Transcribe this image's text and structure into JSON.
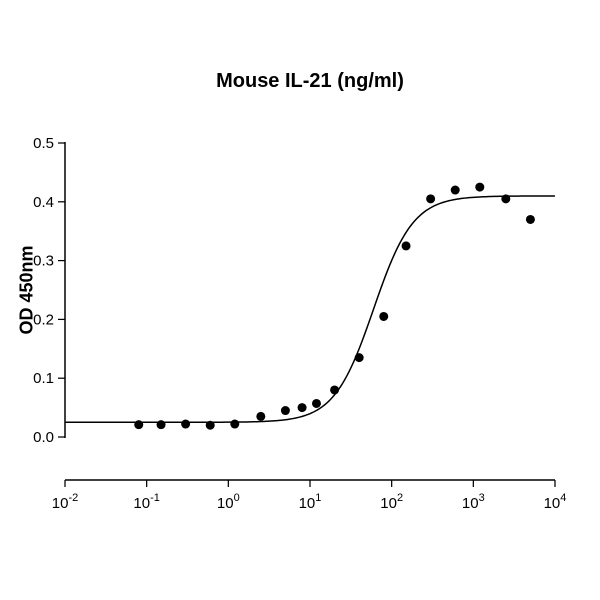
{
  "chart_data": {
    "type": "scatter",
    "title": "Mouse IL-21 (ng/ml)",
    "xlabel": "",
    "ylabel": "OD 450nm",
    "x_scale": "log10",
    "xlim": [
      0.01,
      10000
    ],
    "ylim": [
      0.0,
      0.5
    ],
    "grid": false,
    "legend": false,
    "axis_color": "#000000",
    "x_ticks": [
      {
        "base": "10",
        "exp": "-2",
        "value": 0.01
      },
      {
        "base": "10",
        "exp": "-1",
        "value": 0.1
      },
      {
        "base": "10",
        "exp": "0",
        "value": 1
      },
      {
        "base": "10",
        "exp": "1",
        "value": 10
      },
      {
        "base": "10",
        "exp": "2",
        "value": 100
      },
      {
        "base": "10",
        "exp": "3",
        "value": 1000
      },
      {
        "base": "10",
        "exp": "4",
        "value": 10000
      }
    ],
    "y_ticks": [
      {
        "label": "0.0",
        "value": 0.0
      },
      {
        "label": "0.1",
        "value": 0.1
      },
      {
        "label": "0.2",
        "value": 0.2
      },
      {
        "label": "0.3",
        "value": 0.3
      },
      {
        "label": "0.4",
        "value": 0.4
      },
      {
        "label": "0.5",
        "value": 0.5
      }
    ],
    "series": [
      {
        "name": "measured-points",
        "type": "scatter",
        "marker": "filled-circle",
        "marker_radius": 4.5,
        "color": "#000000",
        "x": [
          0.08,
          0.15,
          0.3,
          0.6,
          1.2,
          2.5,
          5,
          8,
          12,
          20,
          40,
          80,
          150,
          300,
          600,
          1200,
          2500,
          5000
        ],
        "y": [
          0.021,
          0.021,
          0.022,
          0.02,
          0.022,
          0.035,
          0.045,
          0.05,
          0.057,
          0.08,
          0.135,
          0.205,
          0.325,
          0.405,
          0.42,
          0.425,
          0.405,
          0.37
        ]
      },
      {
        "name": "4pl-fit-curve",
        "type": "line",
        "color": "#000000",
        "line_width": 1.5,
        "fit": {
          "model": "4PL",
          "bottom": 0.025,
          "top": 0.41,
          "ec50": 60,
          "hill": 1.8
        }
      }
    ]
  }
}
